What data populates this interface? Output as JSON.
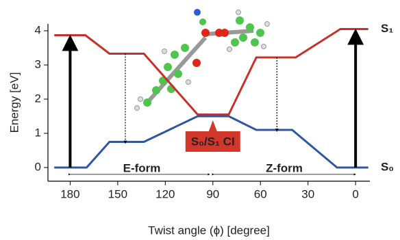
{
  "chart_data": {
    "type": "line",
    "x_label": "Twist angle (ϕ) [degree]",
    "y_label": "Energy [eV]",
    "xlim": [
      194,
      -9
    ],
    "ylim": [
      -0.4,
      4.2
    ],
    "xticks": [
      180,
      150,
      120,
      90,
      60,
      30,
      0
    ],
    "yticks": [
      0,
      1,
      2,
      3,
      4
    ],
    "grid": false,
    "series": [
      {
        "name": "S₁",
        "color": "#c8312a",
        "x": [
          190,
          170.4,
          155.2,
          133.5,
          99.6,
          80,
          62.6,
          37.8,
          9.6,
          -8
        ],
        "values": [
          3.87,
          3.87,
          3.33,
          3.33,
          1.55,
          1.55,
          3.22,
          3.22,
          4.05,
          4.05
        ]
      },
      {
        "name": "S₀",
        "color": "#2f56a0",
        "x": [
          190,
          169.6,
          155.2,
          133.5,
          99.6,
          80,
          62.6,
          40,
          11.7,
          -8
        ],
        "values": [
          0,
          0,
          0.75,
          0.75,
          1.5,
          1.5,
          1.1,
          1.1,
          0,
          0
        ]
      }
    ],
    "transitions": [
      {
        "x": 180,
        "from": 0,
        "to": 3.87,
        "style": "solid"
      },
      {
        "x": 0,
        "from": 0,
        "to": 4.05,
        "style": "solid"
      },
      {
        "x": 145.2,
        "from": 3.33,
        "to": 0.75,
        "style": "dotted"
      },
      {
        "x": 49.6,
        "from": 3.22,
        "to": 1.1,
        "style": "dotted"
      }
    ],
    "annotations": [
      "E-form",
      "Z-form",
      "S₀/S₁ CI"
    ]
  }
}
